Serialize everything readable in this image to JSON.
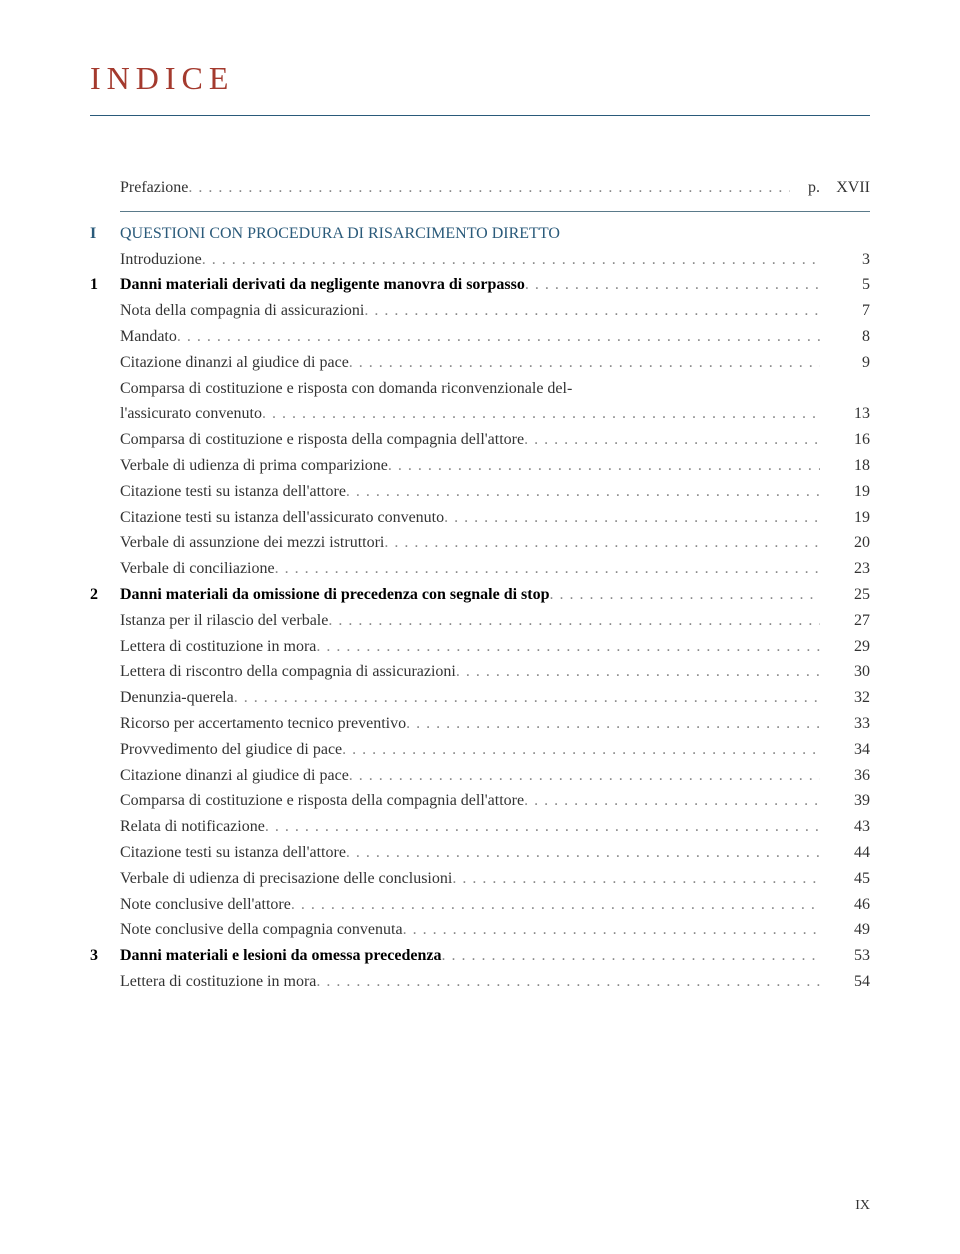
{
  "title": "INDICE",
  "title_color": "#a43a2e",
  "rule_color": "#2a5a7a",
  "section_color": "#2a5a7a",
  "text_color": "#333333",
  "page_footer": "IX",
  "pref": {
    "label": "Prefazione",
    "page_prefix": "p.",
    "page": "XVII"
  },
  "sections": [
    {
      "num": "I",
      "label": "QUESTIONI CON PROCEDURA DI RISARCIMENTO DIRETTO"
    }
  ],
  "entries": [
    {
      "num": "",
      "label": "Introduzione",
      "page": "3",
      "indent": 1
    },
    {
      "num": "1",
      "label": "Danni materiali derivati da negligente manovra di sorpasso",
      "page": "5",
      "bold": true,
      "indent": 0
    },
    {
      "num": "",
      "label": "Nota della compagnia di assicurazioni",
      "page": "7",
      "indent": 1
    },
    {
      "num": "",
      "label": "Mandato",
      "page": "8",
      "indent": 1
    },
    {
      "num": "",
      "label": "Citazione dinanzi al giudice di pace",
      "page": "9",
      "indent": 1
    },
    {
      "num": "",
      "label": "Comparsa di costituzione e risposta con domanda riconvenzionale del-",
      "page": "",
      "indent": 1,
      "nofill": true
    },
    {
      "num": "",
      "label": "l'assicurato convenuto",
      "page": "13",
      "indent": 1
    },
    {
      "num": "",
      "label": "Comparsa di costituzione e risposta della compagnia dell'attore",
      "page": "16",
      "indent": 1
    },
    {
      "num": "",
      "label": "Verbale di udienza di prima comparizione",
      "page": "18",
      "indent": 1
    },
    {
      "num": "",
      "label": "Citazione testi su istanza dell'attore",
      "page": "19",
      "indent": 1
    },
    {
      "num": "",
      "label": "Citazione testi su istanza dell'assicurato convenuto",
      "page": "19",
      "indent": 1
    },
    {
      "num": "",
      "label": "Verbale di assunzione dei mezzi istruttori",
      "page": "20",
      "indent": 1
    },
    {
      "num": "",
      "label": "Verbale di conciliazione",
      "page": "23",
      "indent": 1
    },
    {
      "num": "2",
      "label": "Danni materiali da omissione di precedenza con segnale di stop",
      "page": "25",
      "bold": true,
      "indent": 0
    },
    {
      "num": "",
      "label": "Istanza per il rilascio del verbale",
      "page": "27",
      "indent": 1
    },
    {
      "num": "",
      "label": "Lettera di costituzione in mora",
      "page": "29",
      "indent": 1
    },
    {
      "num": "",
      "label": "Lettera di riscontro della compagnia di assicurazioni",
      "page": "30",
      "indent": 1
    },
    {
      "num": "",
      "label": "Denunzia-querela",
      "page": "32",
      "indent": 1
    },
    {
      "num": "",
      "label": "Ricorso per accertamento tecnico preventivo",
      "page": "33",
      "indent": 1
    },
    {
      "num": "",
      "label": "Provvedimento del giudice di pace",
      "page": "34",
      "indent": 1
    },
    {
      "num": "",
      "label": "Citazione dinanzi al giudice di pace",
      "page": "36",
      "indent": 1
    },
    {
      "num": "",
      "label": "Comparsa di costituzione e risposta della compagnia dell'attore",
      "page": "39",
      "indent": 1
    },
    {
      "num": "",
      "label": "Relata di notificazione",
      "page": "43",
      "indent": 1
    },
    {
      "num": "",
      "label": "Citazione testi su istanza dell'attore",
      "page": "44",
      "indent": 1
    },
    {
      "num": "",
      "label": "Verbale di udienza di precisazione delle conclusioni",
      "page": "45",
      "indent": 1
    },
    {
      "num": "",
      "label": "Note conclusive dell'attore",
      "page": "46",
      "indent": 1
    },
    {
      "num": "",
      "label": "Note conclusive della compagnia convenuta",
      "page": "49",
      "indent": 1
    },
    {
      "num": "3",
      "label": "Danni materiali e lesioni da omessa precedenza",
      "page": "53",
      "bold": true,
      "indent": 0
    },
    {
      "num": "",
      "label": "Lettera di costituzione in mora",
      "page": "54",
      "indent": 1
    }
  ]
}
